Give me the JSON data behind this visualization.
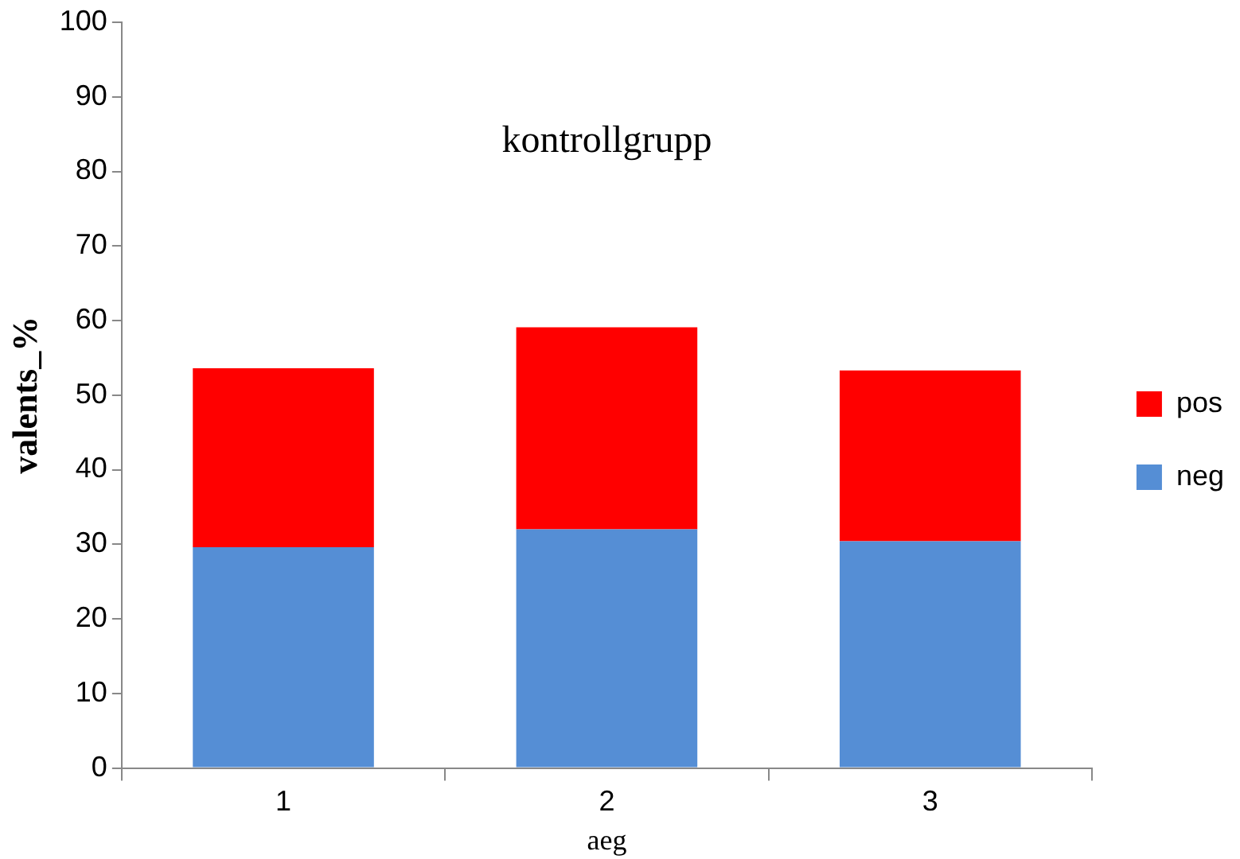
{
  "chart_data": {
    "type": "bar",
    "title": "kontrollgrupp",
    "xlabel": "aeg",
    "ylabel": "valents_%",
    "categories": [
      "1",
      "2",
      "3"
    ],
    "stacked": true,
    "series": [
      {
        "name": "neg",
        "color": "#558ed5",
        "values": [
          29.6,
          32.0,
          30.4
        ]
      },
      {
        "name": "pos",
        "color": "#ff0000",
        "values": [
          24.0,
          27.1,
          22.9
        ]
      }
    ],
    "ylim": [
      0,
      100
    ],
    "yticks": [
      0,
      10,
      20,
      30,
      40,
      50,
      60,
      70,
      80,
      90,
      100
    ],
    "grid": false,
    "legend": "right"
  }
}
